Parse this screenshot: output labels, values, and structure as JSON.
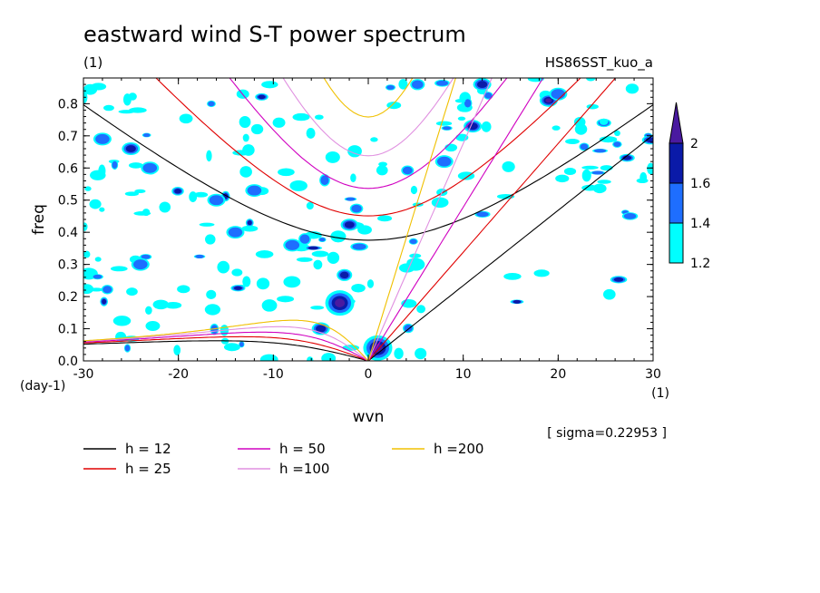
{
  "chart_data": {
    "type": "contour",
    "title": "eastward wind S-T power spectrum",
    "subtitle_left": "(1)",
    "subtitle_right": "HS86SST_kuo_a",
    "xlabel": "wvn",
    "ylabel": "freq",
    "x_unit": "(1)",
    "y_unit": "(day-1)",
    "xlim": [
      -30,
      30
    ],
    "ylim": [
      0,
      0.88
    ],
    "x_ticks": [
      -30,
      -20,
      -10,
      0,
      10,
      20,
      30
    ],
    "x_tick_labels": [
      "-30",
      "-20",
      "-10",
      "0",
      "10",
      "20",
      "30"
    ],
    "y_ticks": [
      0.0,
      0.1,
      0.2,
      0.3,
      0.4,
      0.5,
      0.6,
      0.7,
      0.8
    ],
    "y_tick_labels": [
      "0.0",
      "0.1",
      "0.2",
      "0.3",
      "0.4",
      "0.5",
      "0.6",
      "0.7",
      "0.8"
    ],
    "sigma_note": "[ sigma=0.22953 ]",
    "colorbar": {
      "levels": [
        1.2,
        1.4,
        1.6,
        2
      ],
      "labels": [
        "1.2",
        "1.4",
        "1.6",
        "2"
      ],
      "colors": [
        "#00ffff",
        "#1e6eff",
        "#0a1aa8",
        "#4a1aa0"
      ]
    },
    "dispersion_curves": [
      {
        "label": "h = 12",
        "h": 12,
        "color": "#000000"
      },
      {
        "label": "h = 25",
        "h": 25,
        "color": "#e00000"
      },
      {
        "label": "h = 50",
        "h": 50,
        "color": "#d000c0"
      },
      {
        "label": "h =100",
        "h": 100,
        "color": "#e090e0"
      },
      {
        "label": "h =200",
        "h": 200,
        "color": "#f0c000"
      }
    ],
    "features": [
      {
        "wvn": -3,
        "freq": 0.18,
        "level": 2,
        "desc": "strong westward blob"
      },
      {
        "wvn": 1,
        "freq": 0.04,
        "level": 2,
        "desc": "strong near origin"
      },
      {
        "wvn": -5,
        "freq": 0.1,
        "level": 1.6
      },
      {
        "wvn": 19,
        "freq": 0.81,
        "level": 2
      },
      {
        "wvn": 12,
        "freq": 0.86,
        "level": 1.6
      },
      {
        "wvn": -23,
        "freq": 0.6,
        "level": 1.4
      },
      {
        "wvn": -16,
        "freq": 0.5,
        "level": 1.4
      },
      {
        "wvn": -24,
        "freq": 0.3,
        "level": 1.4
      },
      {
        "wvn": -25,
        "freq": 0.66,
        "level": 1.6
      },
      {
        "wvn": -14,
        "freq": 0.4,
        "level": 1.4
      },
      {
        "wvn": -8,
        "freq": 0.36,
        "level": 1.4
      },
      {
        "wvn": 8,
        "freq": 0.62,
        "level": 1.4
      },
      {
        "wvn": 11,
        "freq": 0.73,
        "level": 1.6
      },
      {
        "wvn": 20,
        "freq": 0.83,
        "level": 1.4
      },
      {
        "wvn": 5,
        "freq": 0.3,
        "level": 1.2
      },
      {
        "wvn": -28,
        "freq": 0.69,
        "level": 1.4
      },
      {
        "wvn": -12,
        "freq": 0.53,
        "level": 1.4
      }
    ]
  }
}
